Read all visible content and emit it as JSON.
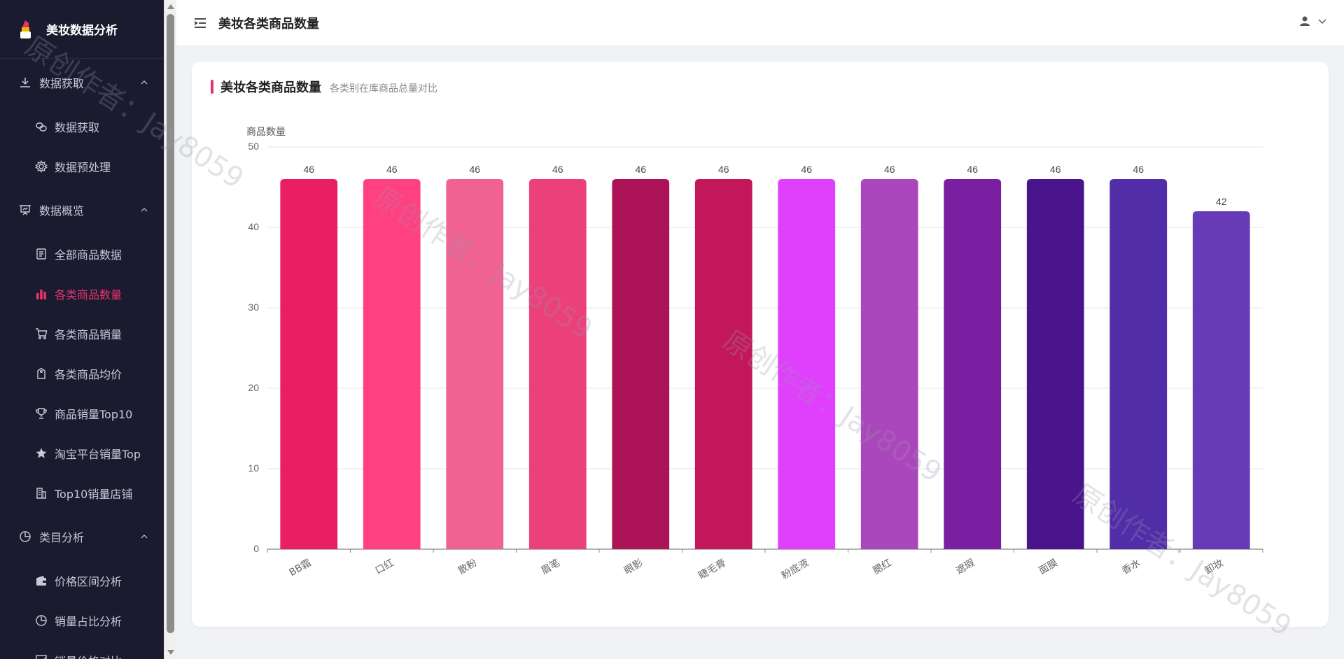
{
  "app": {
    "brand_title": "美妆数据分析"
  },
  "sidebar": {
    "groups": [
      {
        "label": "数据获取",
        "items": [
          {
            "label": "数据获取"
          },
          {
            "label": "数据预处理"
          }
        ]
      },
      {
        "label": "数据概览",
        "items": [
          {
            "label": "全部商品数据"
          },
          {
            "label": "各类商品数量"
          },
          {
            "label": "各类商品销量"
          },
          {
            "label": "各类商品均价"
          },
          {
            "label": "商品销量Top10"
          },
          {
            "label": "淘宝平台销量Top"
          },
          {
            "label": "Top10销量店铺"
          }
        ]
      },
      {
        "label": "类目分析",
        "items": [
          {
            "label": "价格区间分析"
          },
          {
            "label": "销量占比分析"
          },
          {
            "label": "销量价格对比"
          }
        ]
      }
    ],
    "active_item": "各类商品数量",
    "accent_color": "#e7336b"
  },
  "header": {
    "title": "美妆各类商品数量"
  },
  "card": {
    "title": "美妆各类商品数量",
    "subtitle": "各类别在库商品总量对比"
  },
  "watermark": "原创作者：Jay8059",
  "chart_data": {
    "type": "bar",
    "ylabel": "商品数量",
    "xlabel": "",
    "ylim": [
      0,
      50
    ],
    "yticks": [
      0,
      10,
      20,
      30,
      40,
      50
    ],
    "grid": true,
    "categories": [
      "BB霜",
      "口红",
      "散粉",
      "眉笔",
      "眼影",
      "睫毛膏",
      "粉底液",
      "腮红",
      "遮瑕",
      "面膜",
      "香水",
      "卸妆"
    ],
    "values": [
      46,
      46,
      46,
      46,
      46,
      46,
      46,
      46,
      46,
      46,
      46,
      42
    ],
    "colors": [
      "#e91e63",
      "#ff4081",
      "#f06292",
      "#ec407a",
      "#ad1457",
      "#c2185b",
      "#e040fb",
      "#ab47bc",
      "#7b1fa2",
      "#4a148c",
      "#512da8",
      "#673ab7"
    ]
  }
}
